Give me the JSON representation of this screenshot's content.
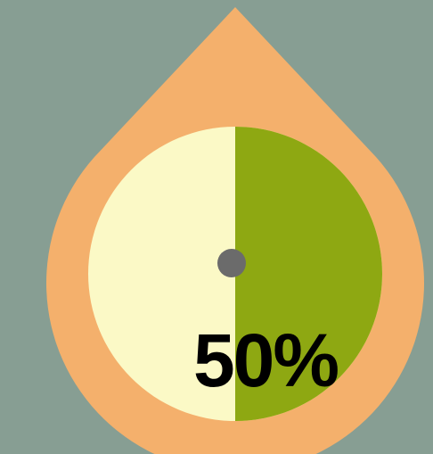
{
  "gauge": {
    "value_percent": 50,
    "label": "50%"
  },
  "colors": {
    "background": "#879e93",
    "drop_outer": "#f4b06c",
    "dial_empty": "#fbf9c6",
    "dial_fill": "#8ea812",
    "center_dot": "#6b6b6b",
    "label": "#000000"
  },
  "icons": {
    "drop": "water-drop-shape",
    "center": "pivot-dot"
  }
}
